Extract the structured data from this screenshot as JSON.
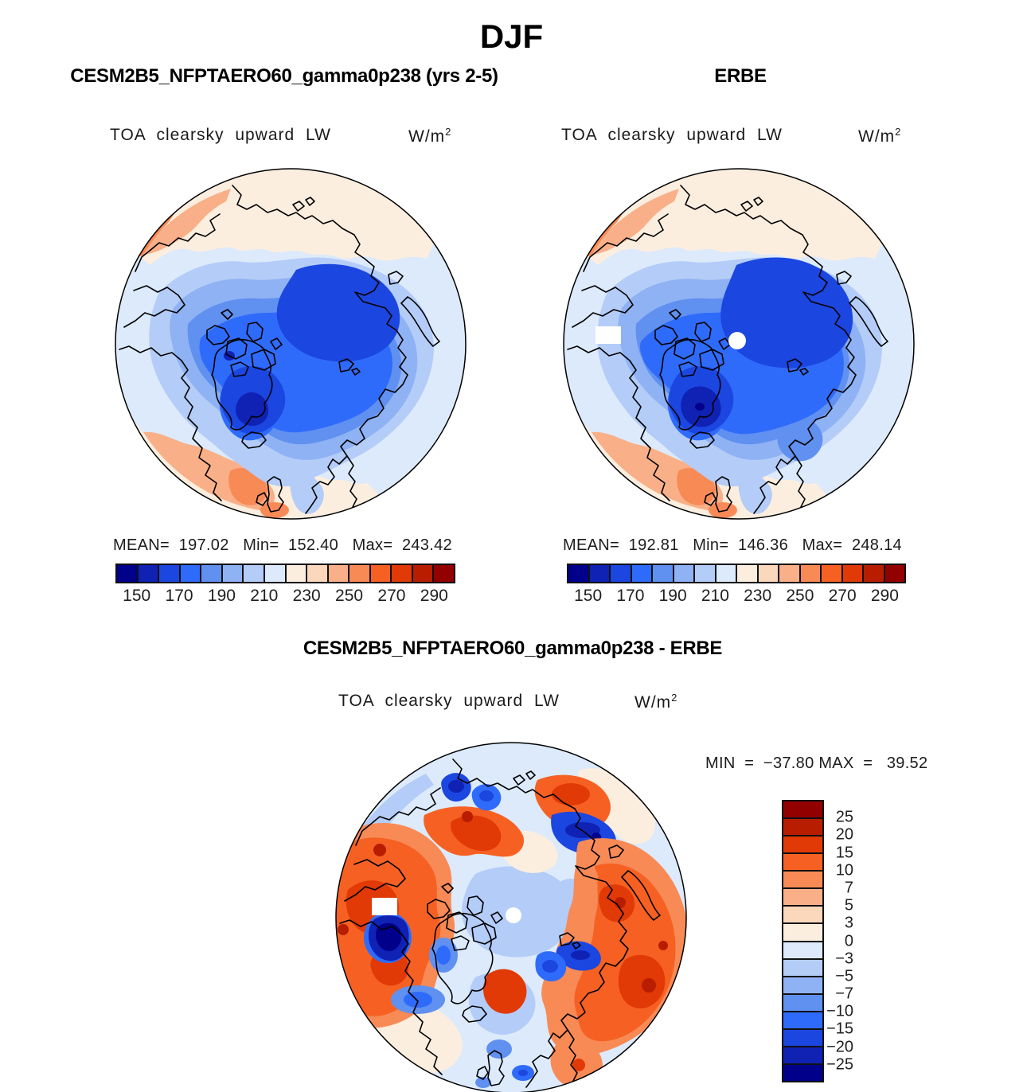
{
  "page": {
    "title": "DJF",
    "background": "#ffffff"
  },
  "panels": {
    "model": {
      "title": "CESM2B5_NFPTAERO60_gamma0p238 (yrs 2-5)",
      "field": "TOA clearsky upward LW",
      "units_base": "W/m",
      "units_exp": "2",
      "stats": "MEAN=  197.02   Min=  152.40   Max=  243.42",
      "cb_ticks": [
        "150",
        "170",
        "190",
        "210",
        "230",
        "250",
        "270",
        "290"
      ]
    },
    "obs": {
      "title": "ERBE",
      "field": "TOA clearsky upward LW",
      "units_base": "W/m",
      "units_exp": "2",
      "stats": "MEAN=  192.81   Min=  146.36   Max=  248.14",
      "cb_ticks": [
        "150",
        "170",
        "190",
        "210",
        "230",
        "250",
        "270",
        "290"
      ]
    },
    "diff": {
      "title": "CESM2B5_NFPTAERO60_gamma0p238 - ERBE",
      "field": "TOA clearsky upward LW",
      "units_base": "W/m",
      "units_exp": "2",
      "minmax": "MIN  =  −37.80 MAX  =   39.52",
      "cb_ticks": [
        "25",
        "20",
        "15",
        "10",
        "7",
        "5",
        "3",
        "0",
        "−3",
        "−5",
        "−7",
        "−10",
        "−15",
        "−20",
        "−25"
      ]
    }
  },
  "palette": [
    "#00008B",
    "#0F22B4",
    "#1B46E0",
    "#2F6BFA",
    "#6090F0",
    "#8FB2F4",
    "#B4CCF8",
    "#DCEAFB",
    "#FCEEDF",
    "#FBD7BC",
    "#F9B089",
    "#F88A56",
    "#F66123",
    "#E13A06",
    "#B81D00",
    "#930000"
  ],
  "colors": {
    "coastline": "#000000",
    "text": "#1c1c1c",
    "map_missing": "#ffffff"
  },
  "chart_data": [
    {
      "type": "heatmap",
      "subtype": "north-polar-stereographic-filled-contour",
      "season": "DJF",
      "title": "CESM2B5_NFPTAERO60_gamma0p238 (yrs 2-5)",
      "variable": "TOA clearsky upward LW",
      "units": "W/m2",
      "stats": {
        "mean": 197.02,
        "min": 152.4,
        "max": 243.42
      },
      "contour_levels": [
        150,
        160,
        170,
        180,
        190,
        200,
        210,
        220,
        230,
        240,
        250,
        260,
        270,
        280,
        290
      ],
      "tick_labels": [
        150,
        170,
        190,
        210,
        230,
        250,
        270,
        290
      ],
      "palette_ref": "palette",
      "legend_position": "below"
    },
    {
      "type": "heatmap",
      "subtype": "north-polar-stereographic-filled-contour",
      "season": "DJF",
      "title": "ERBE",
      "variable": "TOA clearsky upward LW",
      "units": "W/m2",
      "stats": {
        "mean": 192.81,
        "min": 146.36,
        "max": 248.14
      },
      "contour_levels": [
        150,
        160,
        170,
        180,
        190,
        200,
        210,
        220,
        230,
        240,
        250,
        260,
        270,
        280,
        290
      ],
      "tick_labels": [
        150,
        170,
        190,
        210,
        230,
        250,
        270,
        290
      ],
      "palette_ref": "palette",
      "legend_position": "below",
      "missing_data": [
        "pole-hole",
        "alaska-box"
      ]
    },
    {
      "type": "heatmap",
      "subtype": "north-polar-stereographic-filled-contour",
      "season": "DJF",
      "title": "CESM2B5_NFPTAERO60_gamma0p238 - ERBE",
      "variable": "TOA clearsky upward LW",
      "units": "W/m2",
      "stats": {
        "min": -37.8,
        "max": 39.52
      },
      "contour_levels": [
        -25,
        -20,
        -15,
        -10,
        -7,
        -5,
        -3,
        0,
        3,
        5,
        7,
        10,
        15,
        20,
        25
      ],
      "palette_ref": "palette",
      "legend_position": "right",
      "missing_data": [
        "pole-hole",
        "alaska-box"
      ]
    }
  ]
}
